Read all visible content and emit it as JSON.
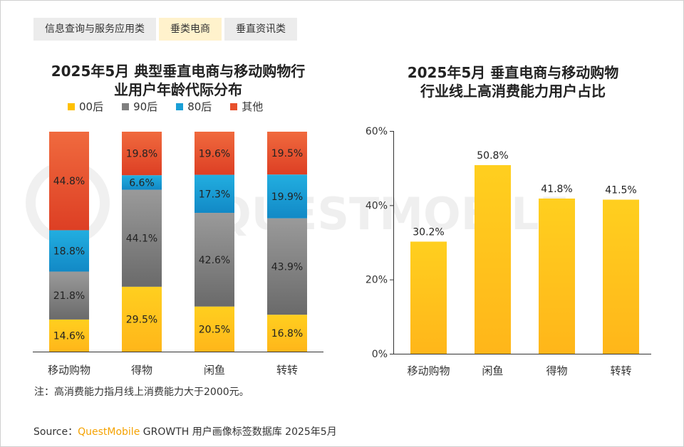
{
  "tabs": [
    {
      "label": "信息查询与服务应用类",
      "active": false
    },
    {
      "label": "垂类电商",
      "active": true
    },
    {
      "label": "垂直资讯类",
      "active": false
    }
  ],
  "footer": {
    "note": "注：高消费能力指月线上消费能力大于2000元。",
    "source_prefix": "Source：",
    "source_brand": "QuestMobile",
    "source_rest": " GROWTH 用户画像标签数据库 2025年5月"
  },
  "colors": {
    "00后": "#ffc000",
    "90后": "#7f7f7f",
    "80后": "#1a9fd6",
    "其他": "#e8502c",
    "bar": "#ffc000"
  },
  "chart_data": [
    {
      "type": "bar",
      "stacked": true,
      "title": "2025年5月 典型垂直电商与移动购物行业用户年龄代际分布",
      "title_lines": [
        "2025年5月 典型垂直电商与移动购物行",
        "业用户年龄代际分布"
      ],
      "categories": [
        "移动购物",
        "得物",
        "闲鱼",
        "转转"
      ],
      "series": [
        {
          "name": "00后",
          "values": [
            14.6,
            29.5,
            20.5,
            16.8
          ]
        },
        {
          "name": "90后",
          "values": [
            21.8,
            44.1,
            42.6,
            43.9
          ]
        },
        {
          "name": "80后",
          "values": [
            18.8,
            6.6,
            17.3,
            19.9
          ]
        },
        {
          "name": "其他",
          "values": [
            44.8,
            19.8,
            19.6,
            19.5
          ]
        }
      ],
      "unit": "%",
      "ylim": [
        0,
        100
      ],
      "legend": "top"
    },
    {
      "type": "bar",
      "title": "2025年5月 垂直电商与移动购物行业线上高消费能力用户占比",
      "title_lines": [
        "2025年5月 垂直电商与移动购物",
        "行业线上高消费能力用户占比"
      ],
      "categories": [
        "移动购物",
        "闲鱼",
        "得物",
        "转转"
      ],
      "values": [
        30.2,
        50.8,
        41.8,
        41.5
      ],
      "unit": "%",
      "ylim": [
        0,
        60
      ],
      "yticks": [
        "0%",
        "20%",
        "40%",
        "60%"
      ],
      "grid": false
    }
  ]
}
